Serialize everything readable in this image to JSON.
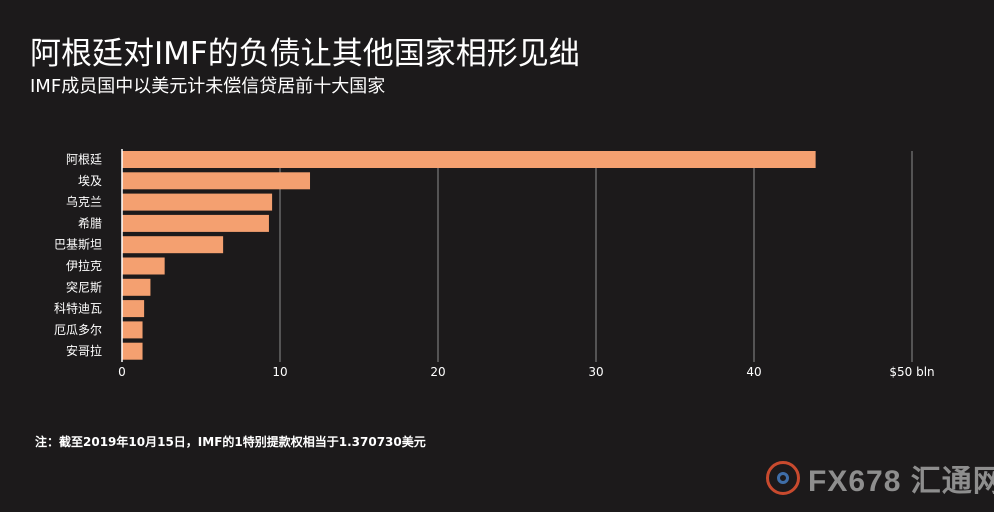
{
  "title": "阿根廷对IMF的负债让其他国家相形见绌",
  "subtitle": "IMF成员国中以美元计未偿信贷居前十大国家",
  "note": "注：截至2019年10月15日，IMF的1特别提款权相当于1.370730美元",
  "watermark": "FX678 汇通网",
  "colors": {
    "bar": "#f4a070",
    "background": "#1c1a1b",
    "grid": "#7a7a7a",
    "text": "#ffffff"
  },
  "chart_data": {
    "type": "bar",
    "orientation": "horizontal",
    "categories": [
      "阿根廷",
      "埃及",
      "乌克兰",
      "希腊",
      "巴基斯坦",
      "伊拉克",
      "突尼斯",
      "科特迪瓦",
      "厄瓜多尔",
      "安哥拉"
    ],
    "values": [
      43.9,
      11.9,
      9.5,
      9.3,
      6.4,
      2.7,
      1.8,
      1.4,
      1.3,
      1.3
    ],
    "xlim": [
      0,
      50
    ],
    "xticks": [
      0,
      10,
      20,
      30,
      40,
      50
    ],
    "xtick_labels": [
      "0",
      "10",
      "20",
      "30",
      "40",
      "$50 bln"
    ],
    "grid": true
  }
}
